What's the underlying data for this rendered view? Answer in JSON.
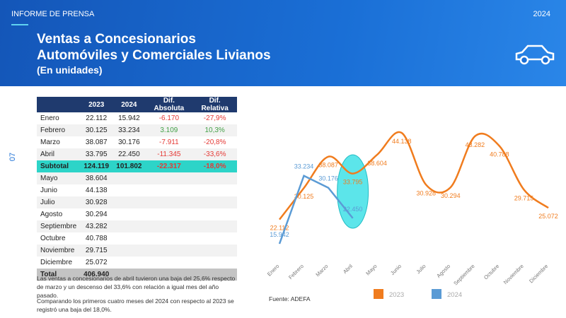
{
  "header": {
    "label": "INFORME DE PRENSA",
    "year": "2024",
    "title_lines": [
      "Ventas a Concesionarios",
      "Automóviles y Comerciales Livianos"
    ],
    "subtitle": "(En unidades)"
  },
  "page_number": "07",
  "table": {
    "header": [
      "",
      "2023",
      "2024",
      "Dif. Absoluta",
      "Dif. Relativa"
    ],
    "rows": [
      [
        "Enero",
        "22.112",
        "15.942",
        "-6.170",
        "-27,9%"
      ],
      [
        "Febrero",
        "30.125",
        "33.234",
        "3.109",
        "10,3%"
      ],
      [
        "Marzo",
        "38.087",
        "30.176",
        "-7.911",
        "-20,8%"
      ],
      [
        "Abril",
        "33.795",
        "22.450",
        "-11.345",
        "-33,6%"
      ],
      [
        "Subtotal",
        "124.119",
        "101.802",
        "-22.317",
        "-18,0%"
      ],
      [
        "Mayo",
        "38.604"
      ],
      [
        "Junio",
        "44.138"
      ],
      [
        "Julio",
        "30.928"
      ],
      [
        "Agosto",
        "30.294"
      ],
      [
        "Septiembre",
        "43.282"
      ],
      [
        "Octubre",
        "40.788"
      ],
      [
        "Noviembre",
        "29.715"
      ],
      [
        "Diciembre",
        "25.072"
      ],
      [
        "Total",
        "406.940"
      ]
    ]
  },
  "paragraphs": [
    "Las ventas a concesionarios de abril tuvieron una baja del 25,6% respecto de marzo y un descenso del 33,6% con relación a igual mes del año pasado.",
    "Comparando los primeros cuatro meses del 2024 con respecto al 2023 se registró una baja del 18,0%."
  ],
  "source": "Fuente: ADEFA",
  "chart_data": {
    "type": "line",
    "categories": [
      "Enero",
      "Febrero",
      "Marzo",
      "Abril",
      "Mayo",
      "Junio",
      "Julio",
      "Agosto",
      "Septiembre",
      "Octubre",
      "Noviembre",
      "Diciembre"
    ],
    "series": [
      {
        "name": "2023",
        "color": "#f07c1e",
        "values": [
          22112,
          30125,
          38087,
          33795,
          38604,
          44138,
          30928,
          30294,
          43282,
          40788,
          29715,
          25072
        ],
        "value_labels": [
          "22.112",
          "30.125",
          "38.087",
          "33.795",
          "38.604",
          "44.138",
          "30.928",
          "30.294",
          "43.282",
          "40.788",
          "29.715",
          "25.072"
        ]
      },
      {
        "name": "2024",
        "color": "#5b9bd5",
        "values": [
          15942,
          33234,
          30176,
          22450,
          null,
          null,
          null,
          null,
          null,
          null,
          null,
          null
        ],
        "value_labels": [
          "15.942",
          "33.234",
          "30.176",
          "22.450",
          null,
          null,
          null,
          null,
          null,
          null,
          null,
          null
        ]
      }
    ]
  }
}
